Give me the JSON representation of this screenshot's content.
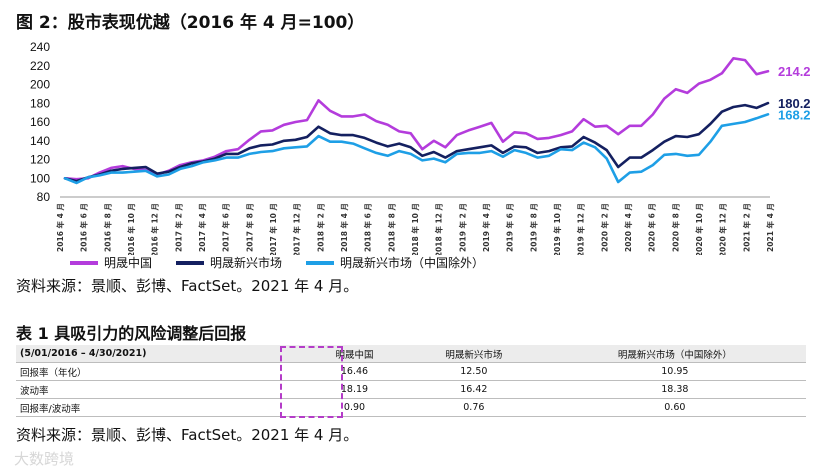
{
  "figure": {
    "title": "图 2：股市表现优越（2016 年 4 月=100）",
    "source": "资料来源：景顺、彭博、FactSet。2021 年 4 月。"
  },
  "colors": {
    "china": "#b43cdc",
    "em": "#142060",
    "em_ex_china": "#1e9fe6"
  },
  "chart_data": {
    "type": "line",
    "ylim": [
      80,
      240
    ],
    "yticks": [
      80,
      100,
      120,
      140,
      160,
      180,
      200,
      220,
      240
    ],
    "x_tick_labels": [
      "2016 年 4 月",
      "2016 年 6 月",
      "2016 年 8 月",
      "2016 年 10 月",
      "2016 年 12 月",
      "2017 年 2 月",
      "2017 年 4 月",
      "2017 年 6 月",
      "2017 年 8 月",
      "2017 年 10 月",
      "2017 年 12 月",
      "2018 年 2 月",
      "2018 年 4 月",
      "2018 年 6 月",
      "2018 年 8 月",
      "2018 年 10 月",
      "2018 年 12 月",
      "2019 年 2 月",
      "2019 年 4 月",
      "2019 年 6 月",
      "2019 年 8 月",
      "2019 年 10 月",
      "2019 年 12 月",
      "2020 年 2 月",
      "2020 年 4 月",
      "2020 年 6 月",
      "2020 年 8 月",
      "2020 年 10 月",
      "2020 年 12 月",
      "2021 年 2 月",
      "2021 年 4 月"
    ],
    "series": [
      {
        "name": "明晟中国",
        "end_label": "214.2",
        "values": [
          100,
          99,
          100,
          106,
          111,
          113,
          110,
          109,
          104,
          108,
          114,
          117,
          119,
          123,
          129,
          131,
          141,
          150,
          151,
          157,
          160,
          162,
          183,
          172,
          166,
          166,
          168,
          161,
          157,
          150,
          148,
          131,
          140,
          133,
          146,
          151,
          155,
          159,
          139,
          149,
          148,
          142,
          143,
          146,
          150,
          163,
          155,
          156,
          147,
          156,
          156,
          168,
          185,
          195,
          191,
          201,
          205,
          212,
          228,
          226,
          211,
          214.2
        ]
      },
      {
        "name": "明晟新兴市场",
        "end_label": "180.2",
        "values": [
          100,
          97,
          101,
          104,
          108,
          110,
          111,
          112,
          105,
          107,
          112,
          116,
          118,
          121,
          126,
          126,
          132,
          135,
          136,
          140,
          141,
          144,
          155,
          148,
          146,
          146,
          143,
          138,
          134,
          137,
          133,
          124,
          128,
          122,
          129,
          131,
          133,
          135,
          127,
          134,
          133,
          127,
          129,
          133,
          134,
          144,
          138,
          130,
          112,
          122,
          122,
          130,
          139,
          145,
          144,
          147,
          158,
          171,
          176,
          178,
          175,
          180.2
        ]
      },
      {
        "name": "明晟新兴市场（中国除外）",
        "end_label": "168.2",
        "values": [
          100,
          95,
          101,
          103,
          106,
          106,
          107,
          108,
          102,
          104,
          110,
          113,
          117,
          119,
          122,
          122,
          126,
          128,
          129,
          132,
          133,
          134,
          145,
          139,
          139,
          137,
          132,
          127,
          124,
          129,
          126,
          119,
          121,
          117,
          126,
          127,
          127,
          129,
          123,
          130,
          127,
          122,
          124,
          131,
          130,
          138,
          133,
          121,
          96,
          106,
          107,
          114,
          125,
          126,
          124,
          125,
          139,
          156,
          158,
          160,
          164,
          168.2
        ]
      }
    ]
  },
  "table": {
    "title": "表 1  具吸引力的风险调整后回报",
    "period": "(5/01/2016 – 4/30/2021)",
    "headers": [
      "明晟中国",
      "明晟新兴市场",
      "明晟新兴市场（中国除外）"
    ],
    "rows": [
      {
        "label": "回报率（年化）",
        "values": [
          "16.46",
          "12.50",
          "10.95"
        ]
      },
      {
        "label": "波动率",
        "values": [
          "18.19",
          "16.42",
          "18.38"
        ]
      },
      {
        "label": "回报率/波动率",
        "values": [
          "0.90",
          "0.76",
          "0.60"
        ]
      }
    ],
    "source": "资料来源：景顺、彭博、FactSet。2021 年 4 月。"
  },
  "watermark": "大数跨境"
}
